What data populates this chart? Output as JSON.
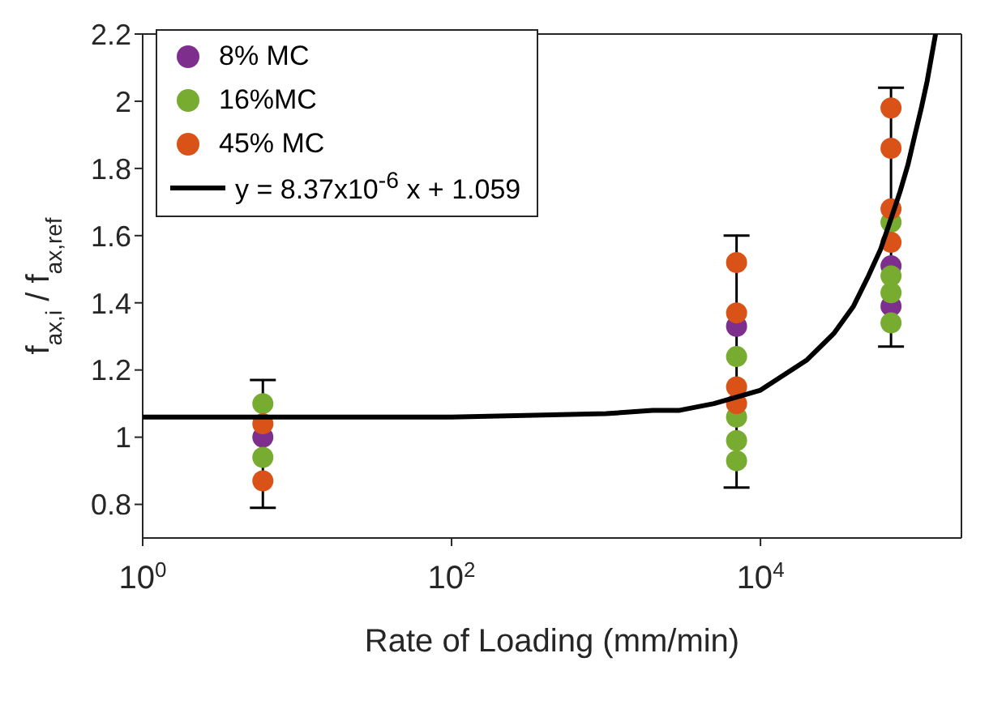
{
  "chart_data": {
    "type": "scatter",
    "xlabel": "Rate of Loading (mm/min)",
    "ylabel": "f$_{ax,i}$ / f$_{ax,ref}$",
    "log": "x",
    "xlim": [
      1,
      200000
    ],
    "xticks": [
      {
        "value": 1,
        "label": "10$^{0}$"
      },
      {
        "value": 100,
        "label": "10$^{2}$"
      },
      {
        "value": 10000,
        "label": "10$^{4}$"
      }
    ],
    "ylim": [
      0.7,
      2.2
    ],
    "yticks": [
      0.8,
      1,
      1.2,
      1.4,
      1.6,
      1.8,
      2,
      2.2
    ],
    "grid": false,
    "legend": "top left",
    "marker": "circle",
    "series": [
      {
        "name": "8% MC",
        "color": "#7e2f8e",
        "x": [
          6,
          7000,
          70000,
          70000
        ],
        "values": [
          1.0,
          1.33,
          1.51,
          1.39
        ],
        "errors": [
          [
            0.79,
            1.17
          ],
          [
            0.85,
            1.6
          ],
          [
            1.27,
            2.04
          ],
          null
        ]
      },
      {
        "name": "16%MC",
        "color": "#77ac30",
        "x": [
          6,
          6,
          7000,
          7000,
          7000,
          7000,
          70000,
          70000,
          70000,
          70000
        ],
        "values": [
          1.1,
          0.94,
          1.24,
          1.06,
          0.99,
          0.93,
          1.64,
          1.48,
          1.43,
          1.34
        ]
      },
      {
        "name": "45% MC",
        "color": "#d95319",
        "x": [
          6,
          6,
          7000,
          7000,
          7000,
          7000,
          70000,
          70000,
          70000,
          70000
        ],
        "values": [
          1.04,
          0.87,
          1.52,
          1.37,
          1.15,
          1.1,
          1.98,
          1.86,
          1.68,
          1.58
        ]
      },
      {
        "name": "y = 8.37x10$^{-6}$ x + 1.059",
        "type": "line",
        "color": "#000000",
        "marker": "none",
        "x": [
          1,
          10,
          100,
          1000,
          2000,
          3000,
          5000,
          10000,
          20000,
          30000,
          40000,
          50000,
          60000,
          70000,
          80000,
          90000,
          100000,
          110000,
          120000,
          130000,
          136000
        ],
        "values": [
          1.06,
          1.06,
          1.06,
          1.07,
          1.08,
          1.08,
          1.1,
          1.14,
          1.23,
          1.31,
          1.39,
          1.48,
          1.56,
          1.65,
          1.73,
          1.81,
          1.9,
          1.98,
          2.06,
          2.15,
          2.2
        ]
      }
    ]
  }
}
